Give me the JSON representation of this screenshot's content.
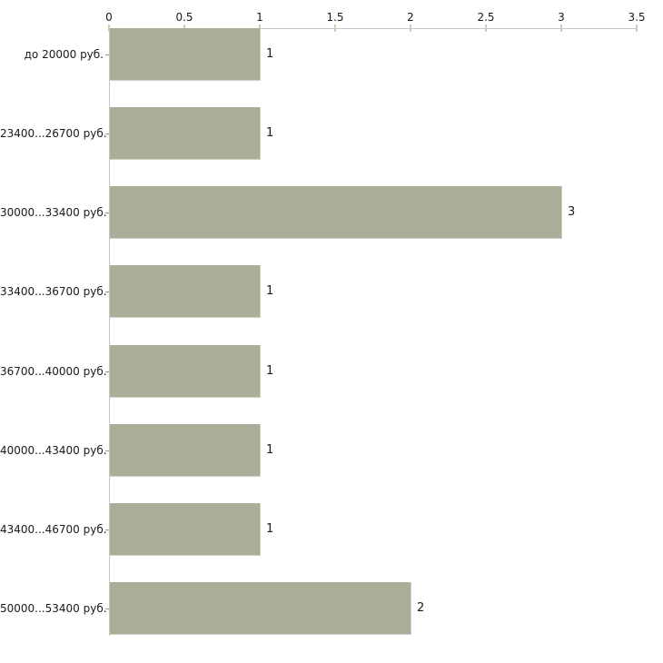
{
  "chart_data": {
    "type": "bar",
    "orientation": "horizontal",
    "title": "",
    "xlabel": "",
    "ylabel": "",
    "categories": [
      "до 20000 руб.",
      "23400...26700 руб.",
      "30000...33400 руб.",
      "33400...36700 руб.",
      "36700...40000 руб.",
      "40000...43400 руб.",
      "43400...46700 руб.",
      "50000...53400 руб."
    ],
    "values": [
      1,
      1,
      3,
      1,
      1,
      1,
      1,
      2
    ],
    "value_labels": [
      "1",
      "1",
      "3",
      "1",
      "1",
      "1",
      "1",
      "2"
    ],
    "xlim": [
      0,
      3.5
    ],
    "x_ticks": [
      0,
      0.5,
      1,
      1.5,
      2,
      2.5,
      3,
      3.5
    ],
    "x_tick_labels": [
      "0",
      "0.5",
      "1",
      "1.5",
      "2",
      "2.5",
      "3",
      "3.5"
    ],
    "axis_position": "top",
    "grid": false,
    "legend": null,
    "colors": {
      "background": "#ffffff",
      "bar_fill": "#a9ae98",
      "bar_edge_light": "#ced2c3",
      "axis_line": "#c6c6c6",
      "x_tick_mark": "#c8cdb4",
      "cat_tick_mark": "#999999",
      "text": "#1a1a1a"
    }
  }
}
